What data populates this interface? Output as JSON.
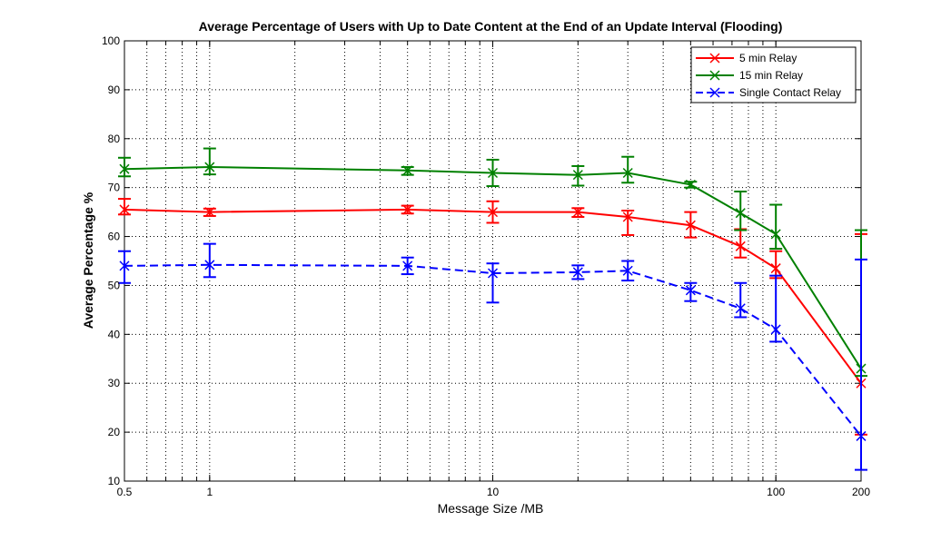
{
  "chart_data": {
    "type": "line",
    "title": "Average Percentage of Users with Up to Date Content at the End of an Update Interval (Flooding)",
    "xlabel": "Message Size /MB",
    "ylabel": "Average Percentage %",
    "xscale": "log",
    "xlim": [
      0.5,
      200
    ],
    "ylim": [
      10,
      100
    ],
    "xticks": [
      0.5,
      1,
      10,
      100,
      200
    ],
    "xtick_labels": [
      "0.5",
      "1",
      "10",
      "100",
      "200"
    ],
    "yticks": [
      10,
      20,
      30,
      40,
      50,
      60,
      70,
      80,
      90,
      100
    ],
    "ytick_labels": [
      "10",
      "20",
      "30",
      "40",
      "50",
      "60",
      "70",
      "80",
      "90",
      "100"
    ],
    "grid": true,
    "legend_position": "top-right",
    "x": [
      0.5,
      1,
      5,
      10,
      20,
      30,
      50,
      75,
      100,
      200
    ],
    "series": [
      {
        "name": "5 min Relay",
        "color": "#ff0000",
        "line_style": "solid",
        "marker": "x",
        "values": [
          65.5,
          65,
          65.5,
          65,
          65,
          64,
          62.3,
          58,
          53.5,
          30
        ],
        "error_low": [
          64.5,
          64.2,
          64.7,
          62.8,
          64,
          60.3,
          59.8,
          55.7,
          51.5,
          19.5
        ],
        "error_high": [
          67.7,
          65.7,
          66.3,
          67.2,
          65.8,
          65.3,
          65,
          61.5,
          57,
          60.5
        ]
      },
      {
        "name": "15 min Relay",
        "color": "#008000",
        "line_style": "solid",
        "marker": "x",
        "values": [
          73.8,
          74.2,
          73.5,
          73,
          72.6,
          73,
          70.6,
          64.8,
          60.5,
          33
        ],
        "error_low": [
          72.3,
          72.7,
          72.6,
          70.3,
          70.4,
          71,
          70,
          61.3,
          57.5,
          31.5
        ],
        "error_high": [
          76.1,
          78,
          74.2,
          75.7,
          74.4,
          76.3,
          71.2,
          69.2,
          66.5,
          61.3
        ]
      },
      {
        "name": "Single Contact Relay",
        "color": "#0000ff",
        "line_style": "dashed",
        "marker": "x",
        "values": [
          54,
          54.2,
          54,
          52.5,
          52.7,
          53,
          49,
          45.3,
          41,
          19.2
        ],
        "error_low": [
          50.5,
          51.7,
          52.3,
          46.5,
          51.3,
          51,
          46.8,
          43.5,
          38.5,
          12.3
        ],
        "error_high": [
          57,
          58.5,
          55.7,
          54.5,
          54.1,
          55,
          50.5,
          50.5,
          52,
          55.3
        ]
      }
    ]
  }
}
